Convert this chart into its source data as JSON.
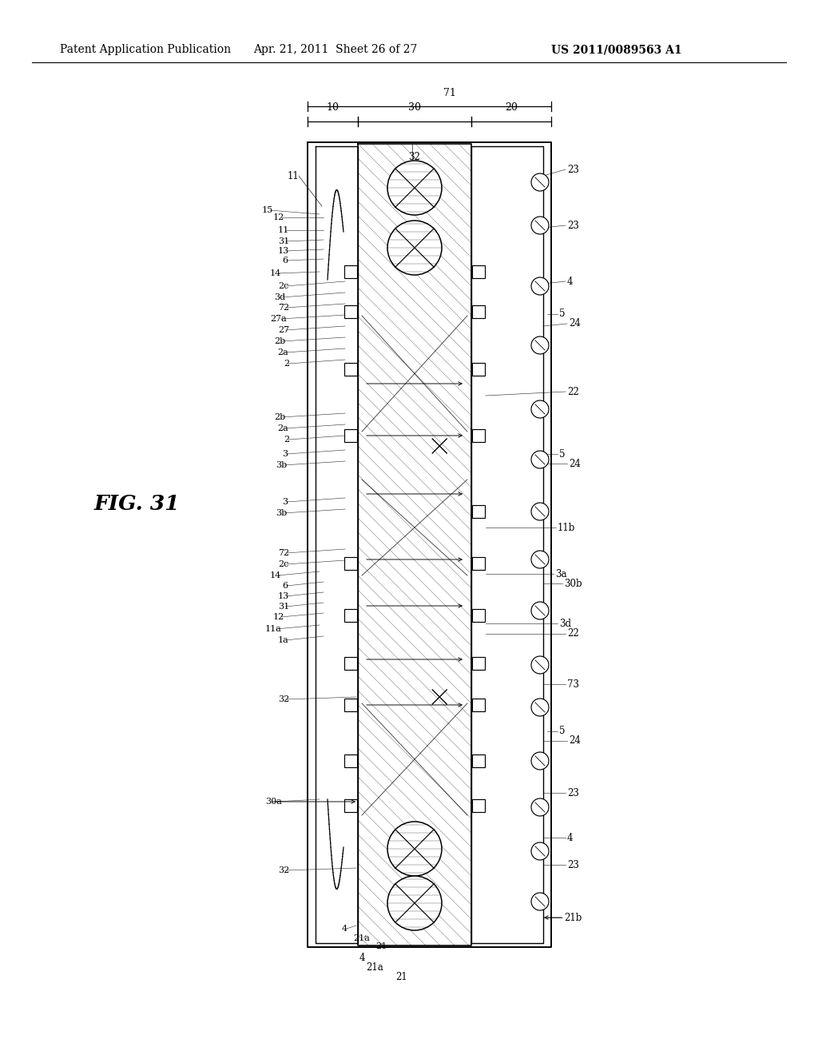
{
  "bg_color": "#ffffff",
  "line_color": "#000000",
  "header_left": "Patent Application Publication",
  "header_center": "Apr. 21, 2011  Sheet 26 of 27",
  "header_right": "US 2011/0089563 A1",
  "fig_label": "FIG. 31",
  "title_fontsize": 10,
  "label_fontsize": 8.5
}
